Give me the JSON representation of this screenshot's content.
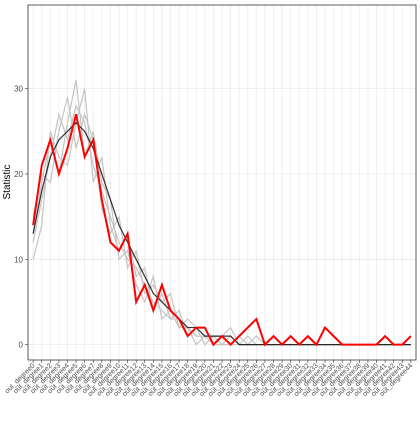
{
  "chart_data": {
    "type": "line",
    "y_label": "Statistic",
    "categories": [
      "out_degree0",
      "out_degree1",
      "out_degree2",
      "out_degree3",
      "out_degree4",
      "out_degree5",
      "out_degree6",
      "out_degree7",
      "out_degree8",
      "out_degree9",
      "out_degree10",
      "out_degree11",
      "out_degree12",
      "out_degree13",
      "out_degree14",
      "out_degree15",
      "out_degree16",
      "out_degree17",
      "out_degree18",
      "out_degree19",
      "out_degree20",
      "out_degree21",
      "out_degree22",
      "out_degree23",
      "out_degree24",
      "out_degree25",
      "out_degree26",
      "out_degree27",
      "out_degree28",
      "out_degree29",
      "out_degree30",
      "out_degree31",
      "out_degree32",
      "out_degree33",
      "out_degree34",
      "out_degree35",
      "out_degree36",
      "out_degree37",
      "out_degree38",
      "out_degree39",
      "out_degree40",
      "out_degree41",
      "out_degree42",
      "out_degree43",
      "out_degree44"
    ],
    "series": [
      {
        "color": "#c4c4c4",
        "values": [
          12,
          17,
          22,
          27,
          24,
          28,
          26,
          21,
          18,
          15,
          12,
          10,
          9,
          7,
          5,
          4,
          3,
          3,
          2,
          1,
          1,
          1,
          0,
          0,
          1,
          0,
          0,
          0,
          0,
          0,
          0,
          0,
          0,
          0,
          0,
          0,
          0,
          0,
          0,
          0,
          0,
          0,
          0,
          0,
          0
        ]
      },
      {
        "color": "#c4c4c4",
        "values": [
          15,
          20,
          19,
          25,
          29,
          23,
          27,
          24,
          16,
          13,
          15,
          9,
          11,
          6,
          7,
          5,
          6,
          2,
          3,
          2,
          0,
          1,
          1,
          2,
          0,
          1,
          0,
          0,
          1,
          0,
          0,
          0,
          0,
          0,
          0,
          0,
          0,
          0,
          0,
          0,
          0,
          0,
          0,
          0,
          0
        ]
      },
      {
        "color": "#c4c4c4",
        "values": [
          10,
          14,
          25,
          22,
          21,
          26,
          30,
          19,
          22,
          14,
          11,
          13,
          8,
          9,
          4,
          6,
          3,
          4,
          1,
          2,
          2,
          0,
          1,
          0,
          0,
          0,
          1,
          0,
          0,
          0,
          1,
          0,
          0,
          0,
          0,
          0,
          0,
          0,
          0,
          0,
          0,
          0,
          0,
          0,
          0
        ]
      },
      {
        "color": "#c4c4c4",
        "values": [
          13,
          19,
          24,
          20,
          26,
          31,
          22,
          25,
          19,
          17,
          10,
          11,
          7,
          5,
          8,
          3,
          4,
          2,
          2,
          0,
          1,
          0,
          0,
          1,
          0,
          0,
          0,
          0,
          0,
          0,
          0,
          0,
          0,
          0,
          0,
          0,
          0,
          0,
          0,
          0,
          0,
          0,
          0,
          0,
          0
        ]
      },
      {
        "color": "#000000",
        "values": [
          13,
          18,
          22,
          24,
          25,
          26,
          25,
          23,
          20,
          17,
          14,
          12,
          10,
          8,
          6,
          5,
          4,
          3,
          2,
          2,
          1,
          1,
          1,
          1,
          0,
          0,
          0,
          0,
          0,
          0,
          0,
          0,
          0,
          0,
          0,
          0,
          0,
          0,
          0,
          0,
          0,
          0,
          0,
          0,
          0
        ]
      },
      {
        "color": "#ff0000",
        "values": [
          14,
          21,
          24,
          20,
          23,
          27,
          22,
          24,
          17,
          12,
          11,
          13,
          5,
          7,
          4,
          7,
          4,
          3,
          1,
          2,
          2,
          0,
          1,
          0,
          1,
          2,
          3,
          0,
          1,
          0,
          1,
          0,
          1,
          0,
          2,
          1,
          0,
          0,
          0,
          0,
          0,
          1,
          0,
          0,
          1
        ]
      }
    ],
    "ylim": [
      -1.8,
      39.8
    ],
    "yticks": [
      0,
      10,
      20,
      30
    ],
    "grid": true
  }
}
